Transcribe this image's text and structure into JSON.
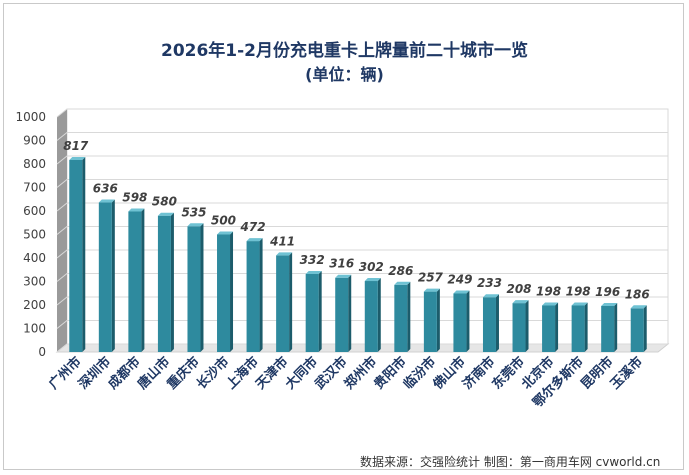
{
  "chart_data": {
    "type": "bar",
    "title": "2026年1-2月份充电重卡上牌量前二十城市一览",
    "subtitle": "(单位：辆)",
    "categories": [
      "广州市",
      "深圳市",
      "成都市",
      "唐山市",
      "重庆市",
      "长沙市",
      "上海市",
      "天津市",
      "大同市",
      "武汉市",
      "郑州市",
      "贵阳市",
      "临汾市",
      "佛山市",
      "济南市",
      "东莞市",
      "北京市",
      "鄂尔多斯市",
      "昆明市",
      "玉溪市"
    ],
    "values": [
      817,
      636,
      598,
      580,
      535,
      500,
      472,
      411,
      332,
      316,
      302,
      286,
      257,
      249,
      233,
      208,
      198,
      198,
      196,
      186
    ],
    "ylim": [
      0,
      1000
    ],
    "yticks": [
      0,
      100,
      200,
      300,
      400,
      500,
      600,
      700,
      800,
      900,
      1000
    ],
    "grid": true,
    "bar_color": "#2e8a9e",
    "bar_top_color": "#6fc2d3",
    "bar_side_color": "#1c5c6b"
  },
  "source": "数据来源：交强险统计  制图：第一商用车网 cvworld.cn"
}
